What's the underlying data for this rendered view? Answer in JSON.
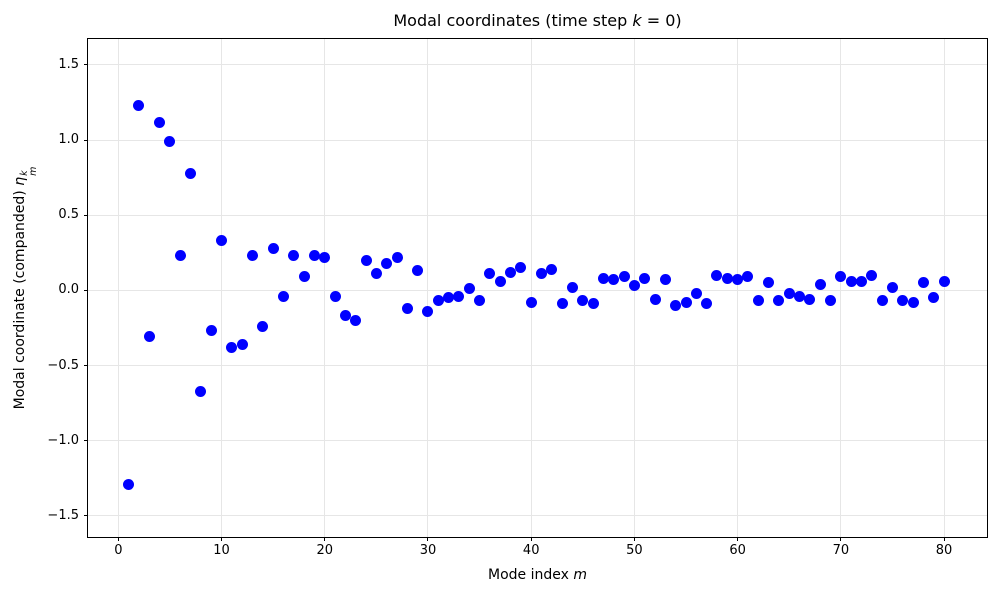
{
  "figure": {
    "background": "#ffffff",
    "spine_color": "#000000",
    "grid_color": "#e6e6e6"
  },
  "chart_data": {
    "type": "scatter",
    "title": "Modal coordinates (time step k = 0)",
    "title_parts": {
      "pre": "Modal coordinates (time step ",
      "var": "k",
      "post": " = 0)"
    },
    "xlabel": "Mode index m",
    "xlabel_parts": {
      "pre": "Mode index ",
      "var": "m"
    },
    "ylabel": "Modal coordinate (companded) η_m^k",
    "ylabel_parts": {
      "pre": "Modal coordinate (companded) ",
      "var": "η",
      "sup": "k",
      "sub": "m"
    },
    "marker_color": "#0000ff",
    "marker_diameter_px": 11,
    "grid": true,
    "legend": "none",
    "xlim": [
      -2.94,
      84.16
    ],
    "ylim": [
      -1.641,
      1.673
    ],
    "xticks": [
      0,
      10,
      20,
      30,
      40,
      50,
      60,
      70,
      80
    ],
    "xtick_labels": [
      "0",
      "10",
      "20",
      "30",
      "40",
      "50",
      "60",
      "70",
      "80"
    ],
    "yticks": [
      -1.5,
      -1.0,
      -0.5,
      0.0,
      0.5,
      1.0,
      1.5
    ],
    "ytick_labels": [
      "−1.5",
      "−1.0",
      "−0.5",
      "0.0",
      "0.5",
      "1.0",
      "1.5"
    ],
    "x": [
      1,
      2,
      3,
      4,
      5,
      6,
      7,
      8,
      9,
      10,
      11,
      12,
      13,
      14,
      15,
      16,
      17,
      18,
      19,
      20,
      21,
      22,
      23,
      24,
      25,
      26,
      27,
      28,
      29,
      30,
      31,
      32,
      33,
      34,
      35,
      36,
      37,
      38,
      39,
      40,
      41,
      42,
      43,
      44,
      45,
      46,
      47,
      48,
      49,
      50,
      51,
      52,
      53,
      54,
      55,
      56,
      57,
      58,
      59,
      60,
      61,
      62,
      63,
      64,
      65,
      66,
      67,
      68,
      69,
      70,
      71,
      72,
      73,
      74,
      75,
      76,
      77,
      78,
      79,
      80
    ],
    "y": [
      -1.29,
      1.23,
      -0.31,
      1.12,
      0.99,
      0.23,
      0.78,
      -0.67,
      -0.27,
      0.33,
      -0.38,
      -0.36,
      0.23,
      -0.24,
      0.28,
      -0.04,
      0.23,
      0.09,
      0.23,
      0.22,
      -0.04,
      -0.17,
      -0.2,
      0.2,
      0.11,
      0.18,
      0.22,
      -0.12,
      0.13,
      -0.14,
      -0.07,
      -0.05,
      -0.04,
      0.01,
      -0.07,
      0.11,
      0.06,
      0.12,
      0.15,
      -0.08,
      0.11,
      0.14,
      -0.09,
      0.02,
      -0.07,
      -0.09,
      0.08,
      0.07,
      0.09,
      0.03,
      0.08,
      -0.06,
      0.07,
      -0.1,
      -0.08,
      -0.02,
      -0.09,
      0.1,
      0.08,
      0.07,
      0.09,
      -0.07,
      0.05,
      -0.07,
      -0.02,
      -0.04,
      -0.06,
      0.04,
      -0.07,
      0.09,
      0.06,
      0.06,
      0.1,
      -0.07,
      0.02,
      -0.07,
      -0.08,
      0.05,
      -0.05,
      0.06
    ]
  }
}
